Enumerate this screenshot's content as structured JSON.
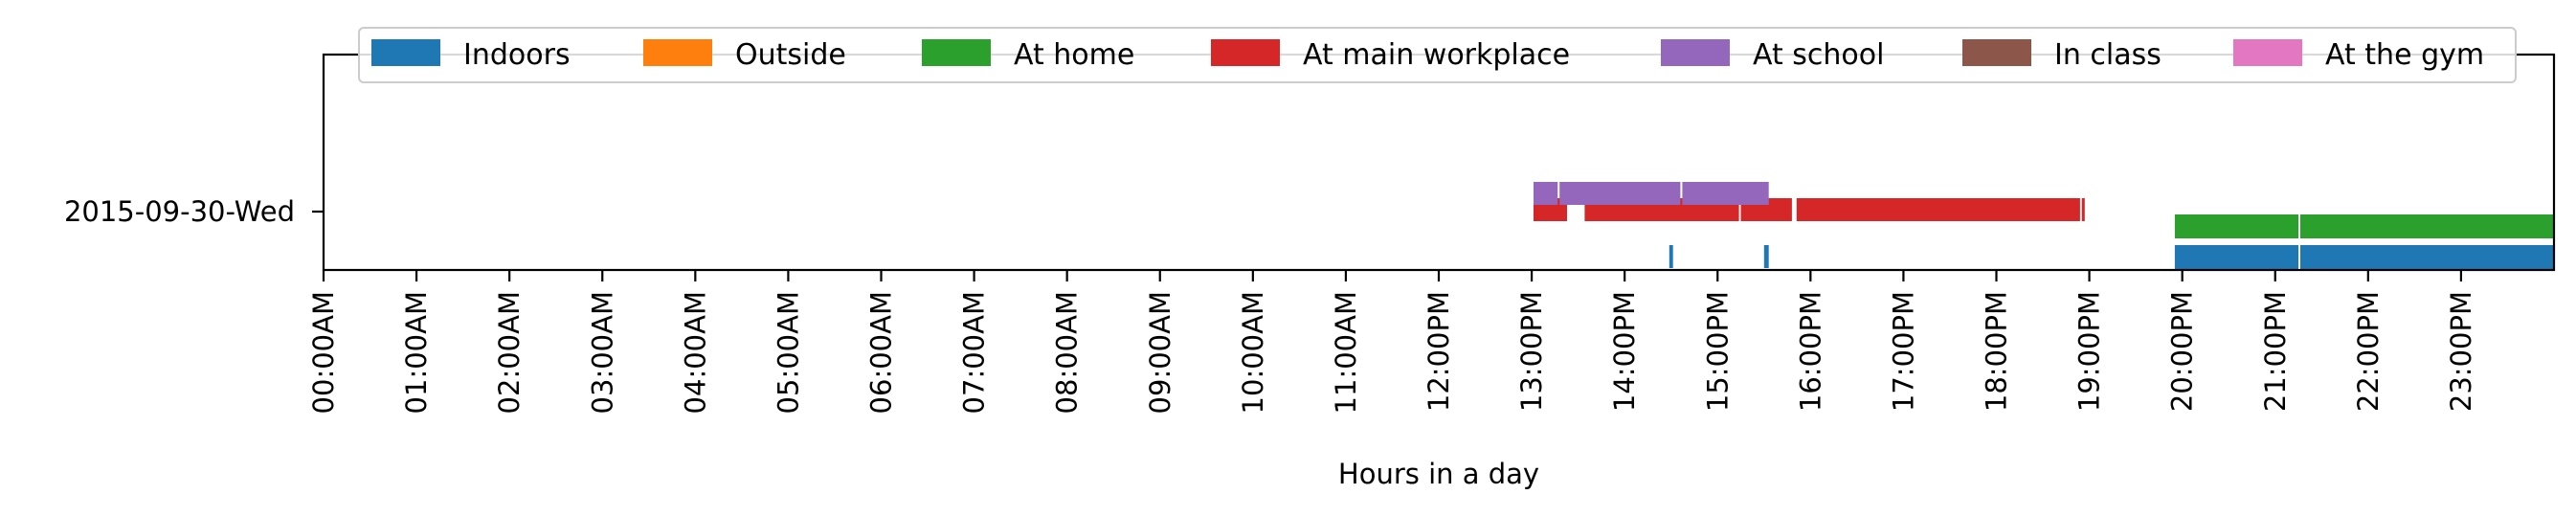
{
  "chart_data": {
    "type": "timeline",
    "title": "",
    "xlabel": "Hours in a day",
    "ylabel": "",
    "xlim": [
      0,
      24
    ],
    "grid": false,
    "legend_placement": "top",
    "rows": [
      "2015-09-30-Wed"
    ],
    "x_tick_labels": [
      "00:00AM",
      "01:00AM",
      "02:00AM",
      "03:00AM",
      "04:00AM",
      "05:00AM",
      "06:00AM",
      "07:00AM",
      "08:00AM",
      "09:00AM",
      "10:00AM",
      "11:00AM",
      "12:00PM",
      "13:00PM",
      "14:00PM",
      "15:00PM",
      "16:00PM",
      "17:00PM",
      "18:00PM",
      "19:00PM",
      "20:00PM",
      "21:00PM",
      "22:00PM",
      "23:00PM"
    ],
    "series": [
      {
        "name": "Indoors",
        "color": "#1f77b4",
        "intervals": [
          [
            14.48,
            14.52
          ],
          [
            15.5,
            15.55
          ],
          [
            19.92,
            21.25
          ],
          [
            21.27,
            24.0
          ]
        ]
      },
      {
        "name": "Outside",
        "color": "#ff7f0e",
        "intervals": []
      },
      {
        "name": "At home",
        "color": "#2ca02c",
        "intervals": [
          [
            19.92,
            21.25
          ],
          [
            21.27,
            24.0
          ]
        ]
      },
      {
        "name": "At main workplace",
        "color": "#d62728",
        "intervals": [
          [
            13.02,
            13.38
          ],
          [
            13.57,
            15.23
          ],
          [
            15.25,
            15.8
          ],
          [
            15.85,
            18.9
          ],
          [
            18.92,
            18.95
          ]
        ]
      },
      {
        "name": "At school",
        "color": "#9467bd",
        "intervals": [
          [
            13.02,
            13.28
          ],
          [
            13.3,
            14.6
          ],
          [
            14.62,
            15.55
          ]
        ]
      },
      {
        "name": "In class",
        "color": "#8c564b",
        "intervals": []
      },
      {
        "name": "At the gym",
        "color": "#e377c2",
        "intervals": []
      }
    ]
  }
}
